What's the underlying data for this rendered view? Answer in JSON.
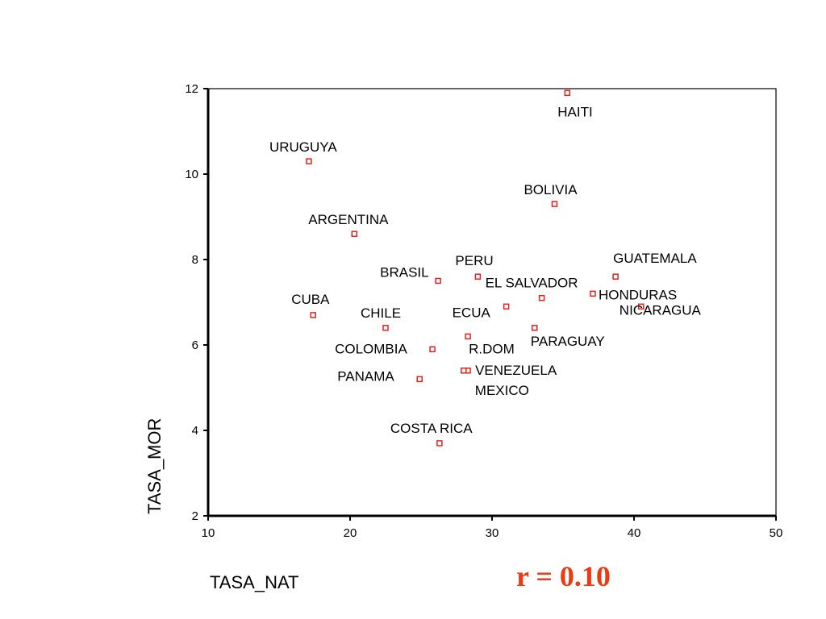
{
  "chart_data": {
    "type": "scatter",
    "xlabel": "TASA_NAT",
    "ylabel": "TASA_MOR",
    "xlim": [
      10,
      50
    ],
    "ylim": [
      2,
      12
    ],
    "xticks": [
      10,
      20,
      30,
      40,
      50
    ],
    "yticks": [
      2,
      4,
      6,
      8,
      10,
      12
    ],
    "grid": false,
    "marker_color": "#e8201a",
    "annotation": {
      "text": "r = 0.10",
      "color": "#ee3a12"
    },
    "points": [
      {
        "label": "HAITI",
        "x": 35.3,
        "y": 11.9
      },
      {
        "label": "URUGUYA",
        "x": 17.1,
        "y": 10.3
      },
      {
        "label": "BOLIVIA",
        "x": 34.4,
        "y": 9.3
      },
      {
        "label": "ARGENTINA",
        "x": 20.3,
        "y": 8.6
      },
      {
        "label": "PERU",
        "x": 29.0,
        "y": 7.6
      },
      {
        "label": "BRASIL",
        "x": 26.2,
        "y": 7.5
      },
      {
        "label": "GUATEMALA",
        "x": 38.7,
        "y": 7.6
      },
      {
        "label": "EL SALVADOR",
        "x": 33.5,
        "y": 7.1
      },
      {
        "label": "HONDURAS",
        "x": 37.1,
        "y": 7.2
      },
      {
        "label": "CUBA",
        "x": 17.4,
        "y": 6.7
      },
      {
        "label": "ECUA",
        "x": 31.0,
        "y": 6.9
      },
      {
        "label": "NICARAGUA",
        "x": 40.5,
        "y": 6.9
      },
      {
        "label": "CHILE",
        "x": 22.5,
        "y": 6.4
      },
      {
        "label": "PARAGUAY",
        "x": 33.0,
        "y": 6.4
      },
      {
        "label": "R.DOM",
        "x": 28.3,
        "y": 6.2
      },
      {
        "label": "COLOMBIA",
        "x": 25.8,
        "y": 5.9
      },
      {
        "label": "VENEZUELA",
        "x": 28.3,
        "y": 5.4
      },
      {
        "label": "MEXICO",
        "x": 28.0,
        "y": 5.4
      },
      {
        "label": "PANAMA",
        "x": 24.9,
        "y": 5.2
      },
      {
        "label": "COSTA RICA",
        "x": 26.3,
        "y": 3.7
      }
    ]
  }
}
